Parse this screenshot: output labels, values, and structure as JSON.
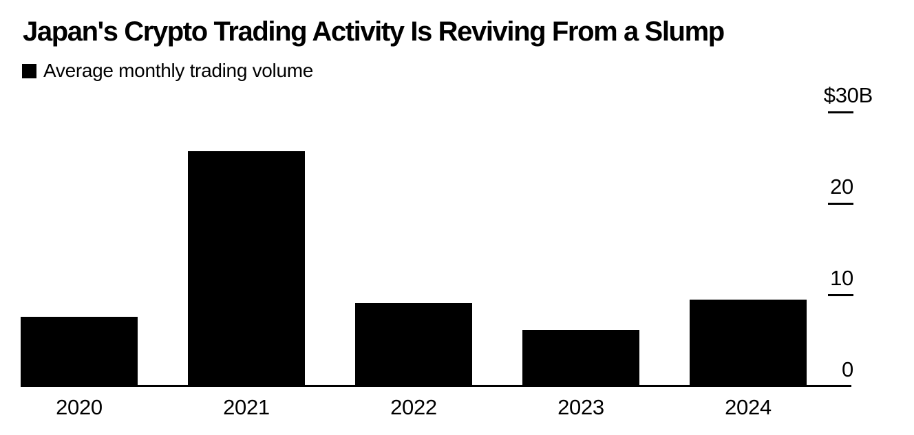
{
  "page": {
    "background": "#ffffff",
    "title": "Japan's Crypto Trading Activity Is Reviving From a Slump"
  },
  "legend": {
    "swatch_color": "#000000",
    "label": "Average monthly trading volume"
  },
  "chart_data": {
    "type": "bar",
    "title": "Japan's Crypto Trading Activity Is Reviving From a Slump",
    "legend_entries": [
      "Average monthly trading volume"
    ],
    "legend_position": "top-left",
    "categories": [
      "2020",
      "2021",
      "2022",
      "2023",
      "2024"
    ],
    "values": [
      7.6,
      25.7,
      9.1,
      6.2,
      9.5
    ],
    "unit": "$B",
    "bar_color": "#000000",
    "background_color": "#ffffff",
    "ylim": [
      0,
      30
    ],
    "grid": false,
    "y_axis_side": "right",
    "y_ticks": [
      {
        "label": "$30B",
        "value": 30,
        "dash": true
      },
      {
        "label": "20",
        "value": 20,
        "dash": true
      },
      {
        "label": "10",
        "value": 10,
        "dash": true
      },
      {
        "label": "0",
        "value": 0,
        "dash": false
      }
    ]
  }
}
